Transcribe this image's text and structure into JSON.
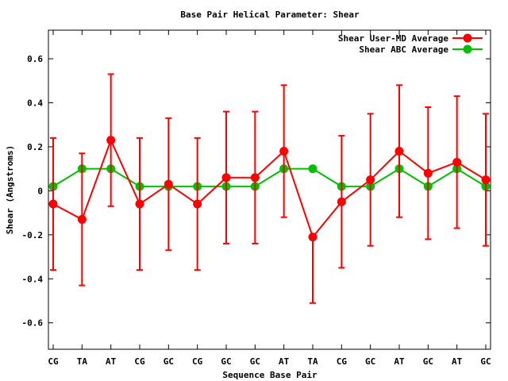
{
  "chart_data": {
    "type": "line",
    "title": "Base Pair Helical Parameter: Shear",
    "xlabel": "Sequence Base Pair",
    "ylabel": "Shear (Angstroms)",
    "categories": [
      "CG",
      "TA",
      "AT",
      "CG",
      "GC",
      "CG",
      "GC",
      "GC",
      "AT",
      "TA",
      "CG",
      "GC",
      "AT",
      "GC",
      "AT",
      "GC"
    ],
    "ylim": [
      -0.72,
      0.73
    ],
    "yticks": [
      -0.6,
      -0.4,
      -0.2,
      0,
      0.2,
      0.4,
      0.6
    ],
    "ytick_labels": [
      "-0.6",
      "-0.4",
      "-0.2",
      "0",
      "0.2",
      "0.4",
      "0.6"
    ],
    "grid": false,
    "legend_position": "top-right",
    "series": [
      {
        "name": "Shear User-MD Average",
        "color": "#ff0000",
        "values": [
          -0.06,
          -0.13,
          0.23,
          -0.06,
          0.03,
          -0.06,
          0.06,
          0.06,
          0.18,
          -0.21,
          -0.05,
          0.05,
          0.18,
          0.08,
          0.13,
          0.05
        ],
        "err_high": [
          0.24,
          0.17,
          0.53,
          0.24,
          0.33,
          0.24,
          0.36,
          0.36,
          0.48,
          -0.21,
          0.25,
          0.35,
          0.48,
          0.38,
          0.43,
          0.35
        ],
        "err_low": [
          -0.36,
          -0.43,
          -0.07,
          -0.36,
          -0.27,
          -0.36,
          -0.24,
          -0.24,
          -0.12,
          -0.51,
          -0.35,
          -0.25,
          -0.12,
          -0.22,
          -0.17,
          -0.25
        ]
      },
      {
        "name": "Shear ABC Average",
        "color": "#00c000",
        "values": [
          0.02,
          0.1,
          0.1,
          0.02,
          0.02,
          0.02,
          0.02,
          0.02,
          0.1,
          0.1,
          0.02,
          0.02,
          0.1,
          0.02,
          0.1,
          0.02
        ]
      }
    ]
  }
}
